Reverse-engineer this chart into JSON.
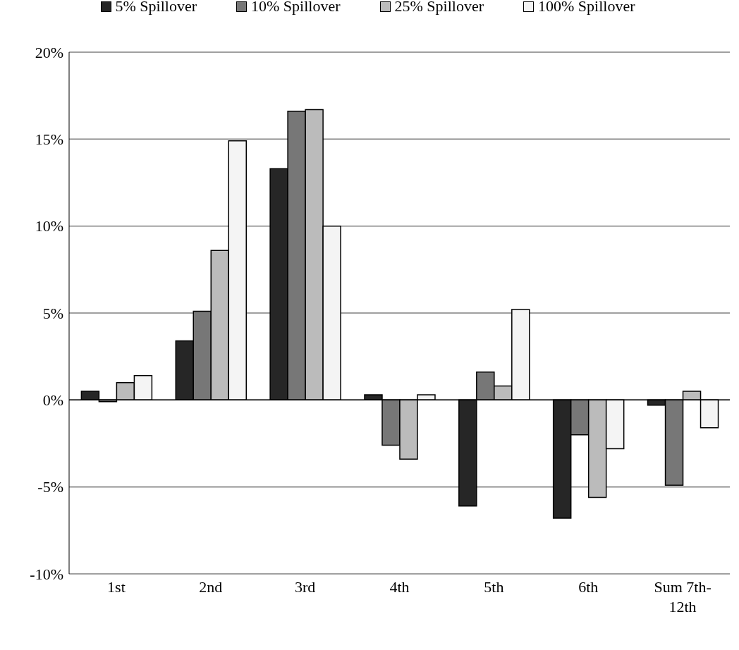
{
  "chart_data": {
    "type": "bar",
    "categories": [
      "1st",
      "2nd",
      "3rd",
      "4th",
      "5th",
      "6th",
      "Sum 7th-12th"
    ],
    "series": [
      {
        "name": "5% Spillover",
        "color": "#262626",
        "values": [
          0.5,
          3.4,
          13.3,
          0.3,
          -6.1,
          -6.8,
          -0.3
        ]
      },
      {
        "name": "10% Spillover",
        "color": "#777777",
        "values": [
          -0.1,
          5.1,
          16.6,
          -2.6,
          1.6,
          -2.0,
          -4.9
        ]
      },
      {
        "name": "25% Spillover",
        "color": "#bbbbbb",
        "values": [
          1.0,
          8.6,
          16.7,
          -3.4,
          0.8,
          -5.6,
          0.5
        ]
      },
      {
        "name": "100% Spillover",
        "color": "#f4f4f4",
        "values": [
          1.4,
          14.9,
          10.0,
          0.3,
          5.2,
          -2.8,
          -1.6
        ]
      }
    ],
    "ylim": [
      -10,
      20
    ],
    "yticks": [
      {
        "value": -10,
        "label": "-10%"
      },
      {
        "value": -5,
        "label": "-5%"
      },
      {
        "value": 0,
        "label": "0%"
      },
      {
        "value": 5,
        "label": "5%"
      },
      {
        "value": 10,
        "label": "10%"
      },
      {
        "value": 15,
        "label": "15%"
      },
      {
        "value": 20,
        "label": "20%"
      }
    ],
    "grid": "y",
    "legend": "top"
  }
}
